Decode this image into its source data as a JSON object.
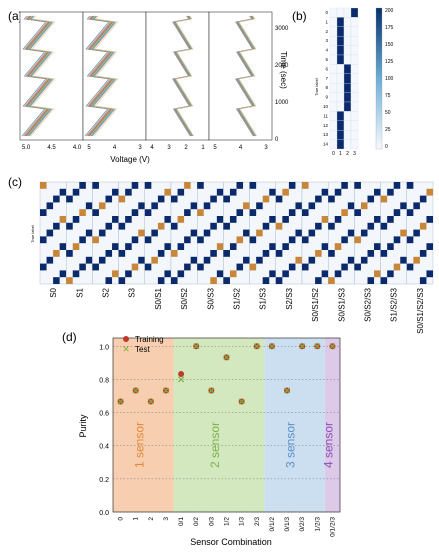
{
  "panels": {
    "a": "(a)",
    "b": "(b)",
    "c": "(c)",
    "d": "(d)"
  },
  "panel_a": {
    "ylabel": "Time (sec)",
    "xlabel": "Voltage (V)",
    "yticks": [
      "3000",
      "2000",
      "1000",
      "0"
    ],
    "xticks": [
      "5.0",
      "4.5",
      "4.0",
      "5",
      "4",
      "3",
      "4",
      "3",
      "2",
      "1",
      "5",
      "4",
      "3"
    ]
  },
  "panel_b": {
    "ylabel": "True label",
    "rows": [
      "0",
      "1",
      "2",
      "3",
      "4",
      "5",
      "6",
      "7",
      "8",
      "9",
      "10",
      "11",
      "12",
      "13",
      "14"
    ],
    "cols": [
      "0",
      "1",
      "2",
      "3"
    ],
    "colorbar_ticks": [
      "200",
      "175",
      "150",
      "125",
      "100",
      "75",
      "50",
      "25",
      "0"
    ]
  },
  "panel_c": {
    "ylabel": "True label",
    "combos": [
      "S0",
      "S1",
      "S2",
      "S3",
      "S0/S1",
      "S0/S2",
      "S0/S3",
      "S1/S2",
      "S1/S3",
      "S2/S3",
      "S0/S1/S2",
      "S0/S1/S3",
      "S0/S2/S3",
      "S1/S2/S3",
      "S0/S1/S2/S3"
    ]
  },
  "chart_data": {
    "type": "scatter",
    "xlabel": "Sensor Combination",
    "ylabel": "Purity",
    "categories": [
      "0",
      "1",
      "2",
      "3",
      "0/1",
      "0/2",
      "0/3",
      "1/2",
      "1/3",
      "2/3",
      "0/1/2",
      "0/1/3",
      "0/2/3",
      "1/2/3",
      "0/1/2/3"
    ],
    "ylim": [
      0.0,
      1.05
    ],
    "yticks": [
      "0.0",
      "0.2",
      "0.4",
      "0.6",
      "0.8",
      "1.0"
    ],
    "grid": "horizontal dotted",
    "legend_position": "top-left",
    "series": [
      {
        "name": "Training",
        "marker": "circle",
        "color": "#c0392b",
        "values": [
          0.667,
          0.733,
          0.667,
          0.733,
          0.833,
          1.0,
          0.733,
          0.933,
          0.667,
          1.0,
          1.0,
          0.733,
          1.0,
          1.0,
          1.0
        ]
      },
      {
        "name": "Test",
        "marker": "x",
        "color": "#7cb342",
        "values": [
          0.667,
          0.733,
          0.667,
          0.733,
          0.8,
          1.0,
          0.733,
          0.933,
          0.667,
          1.0,
          1.0,
          0.733,
          1.0,
          1.0,
          1.0
        ]
      }
    ],
    "regions": [
      {
        "label": "1 sensor",
        "color": "#f6c9a6",
        "text_color": "#e08a3a",
        "from": 0,
        "to": 3
      },
      {
        "label": "2 sensor",
        "color": "#cfe5b8",
        "text_color": "#7ab04a",
        "from": 4,
        "to": 9
      },
      {
        "label": "3 sensor",
        "color": "#c6dbf0",
        "text_color": "#5b8fc8",
        "from": 10,
        "to": 13
      },
      {
        "label": "4 sensor",
        "color": "#d8c4e6",
        "text_color": "#8a4fb8",
        "from": 14,
        "to": 14
      }
    ]
  }
}
